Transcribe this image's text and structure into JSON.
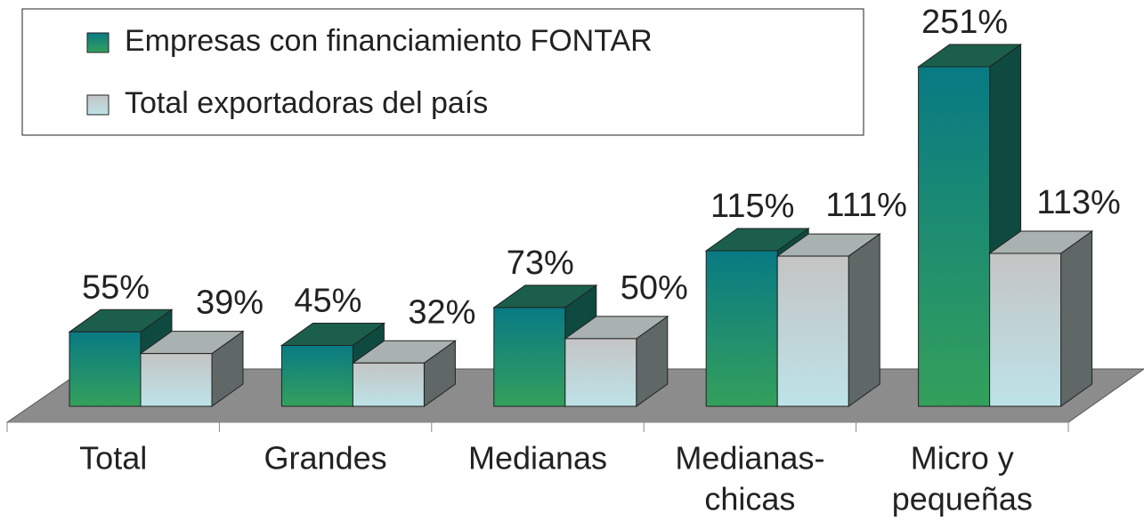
{
  "chart_data": {
    "type": "bar3d",
    "categories": [
      [
        "Total"
      ],
      [
        "Grandes"
      ],
      [
        "Medianas"
      ],
      [
        "Medianas-",
        "chicas"
      ],
      [
        "Micro y",
        "pequeñas"
      ]
    ],
    "series": [
      {
        "name": "Empresas con financiamiento FONTAR",
        "color": "#12807a",
        "values": [
          55,
          45,
          73,
          115,
          251
        ],
        "value_labels": [
          "55%",
          "45%",
          "73%",
          "115%",
          "251%"
        ]
      },
      {
        "name": "Total exportadoras del país",
        "color": "#c8dcdc",
        "values": [
          39,
          32,
          50,
          111,
          113
        ],
        "value_labels": [
          "39%",
          "32%",
          "50%",
          "111%",
          "113%"
        ]
      }
    ],
    "legend": "top-left"
  }
}
